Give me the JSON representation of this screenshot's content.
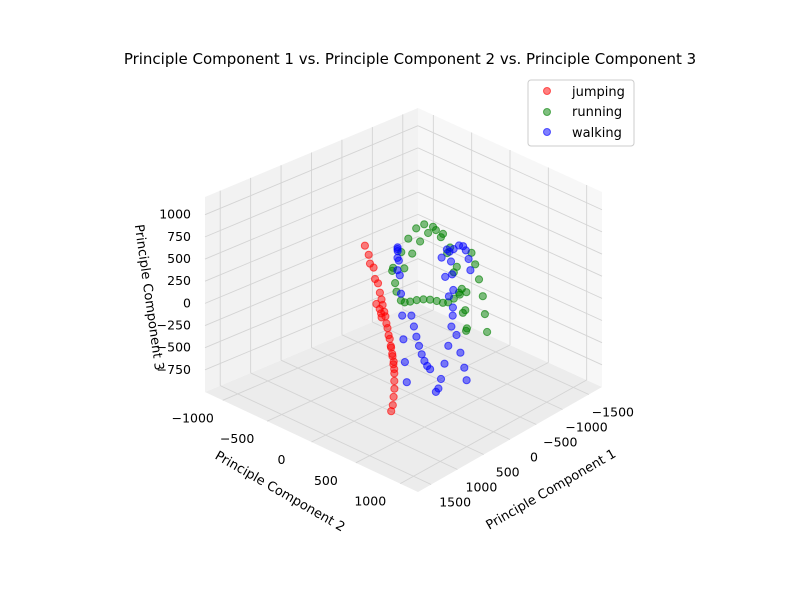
{
  "chart_data": {
    "type": "scatter",
    "title": "Principle Component 1 vs. Principle Component 2 vs. Principle Component 3",
    "xlabel": "Principle Component 1",
    "ylabel": "Principle Component 2",
    "zlabel": "Principle Component 3",
    "xlim": [
      -1750,
      1750
    ],
    "ylim": [
      -1200,
      1200
    ],
    "zlim": [
      -1000,
      1200
    ],
    "x_ticks": [
      -1500,
      -1000,
      -500,
      0,
      500,
      1000,
      1500
    ],
    "y_ticks": [
      -1000,
      -500,
      0,
      500,
      1000
    ],
    "z_ticks": [
      -750,
      -500,
      -250,
      0,
      250,
      500,
      750,
      1000
    ],
    "grid": true,
    "legend_position": "top-right",
    "series": [
      {
        "name": "jumping",
        "color": "#ff0000",
        "points": [
          [
            120,
            -470,
            500
          ],
          [
            140,
            -410,
            430
          ],
          [
            170,
            -330,
            330
          ],
          [
            210,
            -250,
            200
          ],
          [
            250,
            -180,
            60
          ],
          [
            290,
            -120,
            -40
          ],
          [
            340,
            -60,
            -130
          ],
          [
            390,
            0,
            -220
          ],
          [
            440,
            60,
            -300
          ],
          [
            490,
            110,
            -350
          ],
          [
            540,
            160,
            -400
          ],
          [
            590,
            200,
            -450
          ],
          [
            160,
            -380,
            350
          ],
          [
            190,
            -300,
            220
          ],
          [
            220,
            -220,
            110
          ],
          [
            260,
            -160,
            10
          ],
          [
            300,
            -100,
            -80
          ],
          [
            350,
            -40,
            -170
          ],
          [
            400,
            20,
            -250
          ],
          [
            450,
            70,
            -310
          ],
          [
            500,
            120,
            -370
          ],
          [
            560,
            170,
            -420
          ],
          [
            620,
            220,
            -480
          ],
          [
            680,
            260,
            -530
          ],
          [
            740,
            300,
            -580
          ],
          [
            800,
            330,
            -640
          ],
          [
            860,
            360,
            -700
          ],
          [
            920,
            380,
            -740
          ],
          [
            180,
            -250,
            -100
          ],
          [
            200,
            -220,
            -130
          ],
          [
            220,
            -200,
            -160
          ],
          [
            180,
            -290,
            -60
          ]
        ]
      },
      {
        "name": "running",
        "color": "#008000",
        "points": [
          [
            -950,
            -900,
            -250
          ],
          [
            -900,
            -760,
            0
          ],
          [
            -830,
            -620,
            230
          ],
          [
            -760,
            -470,
            430
          ],
          [
            -690,
            -320,
            560
          ],
          [
            -620,
            -160,
            620
          ],
          [
            -560,
            -20,
            580
          ],
          [
            -500,
            100,
            470
          ],
          [
            -430,
            230,
            330
          ],
          [
            -360,
            340,
            170
          ],
          [
            -300,
            430,
            0
          ],
          [
            -240,
            510,
            -150
          ],
          [
            -930,
            -860,
            -400
          ],
          [
            -870,
            -700,
            -150
          ],
          [
            -800,
            -550,
            100
          ],
          [
            -730,
            -400,
            320
          ],
          [
            -660,
            -250,
            500
          ],
          [
            -600,
            -110,
            610
          ],
          [
            -540,
            20,
            640
          ],
          [
            -480,
            150,
            560
          ],
          [
            -410,
            280,
            420
          ],
          [
            -340,
            390,
            240
          ],
          [
            -270,
            480,
            60
          ],
          [
            -210,
            540,
            -100
          ],
          [
            -1000,
            -950,
            -320
          ],
          [
            -980,
            -880,
            -520
          ],
          [
            -920,
            -780,
            -560
          ],
          [
            -850,
            -680,
            -520
          ],
          [
            -780,
            -560,
            -440
          ],
          [
            -700,
            -420,
            -340
          ],
          [
            -620,
            -280,
            -250
          ],
          [
            -540,
            -140,
            -170
          ],
          [
            -460,
            0,
            -100
          ],
          [
            -380,
            130,
            -40
          ],
          [
            -300,
            250,
            40
          ],
          [
            -240,
            360,
            150
          ],
          [
            -200,
            460,
            250
          ],
          [
            -170,
            560,
            330
          ],
          [
            -500,
            400,
            600
          ],
          [
            -450,
            480,
            520
          ],
          [
            -400,
            560,
            400
          ],
          [
            -350,
            640,
            260
          ],
          [
            -300,
            700,
            100
          ],
          [
            -250,
            760,
            -60
          ]
        ]
      },
      {
        "name": "walking",
        "color": "#0000ff",
        "points": [
          [
            -350,
            200,
            600
          ],
          [
            -250,
            300,
            650
          ],
          [
            -130,
            400,
            620
          ],
          [
            0,
            500,
            560
          ],
          [
            130,
            600,
            470
          ],
          [
            260,
            680,
            350
          ],
          [
            380,
            740,
            200
          ],
          [
            500,
            780,
            40
          ],
          [
            600,
            800,
            -120
          ],
          [
            650,
            790,
            -280
          ],
          [
            620,
            740,
            -420
          ],
          [
            540,
            660,
            -520
          ],
          [
            -300,
            -200,
            -300
          ],
          [
            -200,
            -100,
            -350
          ],
          [
            -100,
            0,
            -390
          ],
          [
            0,
            100,
            -420
          ],
          [
            100,
            200,
            -440
          ],
          [
            200,
            300,
            -440
          ],
          [
            300,
            400,
            -420
          ],
          [
            400,
            500,
            -380
          ],
          [
            -400,
            100,
            450
          ],
          [
            -320,
            200,
            300
          ],
          [
            -240,
            300,
            150
          ],
          [
            -160,
            400,
            0
          ],
          [
            -80,
            500,
            -150
          ],
          [
            0,
            600,
            -280
          ],
          [
            80,
            700,
            -380
          ],
          [
            160,
            780,
            -460
          ],
          [
            -200,
            -300,
            200
          ],
          [
            -100,
            -230,
            400
          ],
          [
            0,
            -160,
            560
          ],
          [
            100,
            -90,
            640
          ],
          [
            200,
            -20,
            660
          ],
          [
            300,
            60,
            620
          ],
          [
            400,
            140,
            520
          ],
          [
            500,
            220,
            380
          ],
          [
            600,
            300,
            200
          ],
          [
            700,
            380,
            0
          ],
          [
            780,
            450,
            -200
          ],
          [
            840,
            510,
            -380
          ],
          [
            -250,
            350,
            700
          ],
          [
            -200,
            450,
            800
          ],
          [
            -140,
            540,
            850
          ],
          [
            -70,
            620,
            860
          ],
          [
            0,
            700,
            820
          ],
          [
            60,
            760,
            740
          ]
        ]
      }
    ]
  }
}
